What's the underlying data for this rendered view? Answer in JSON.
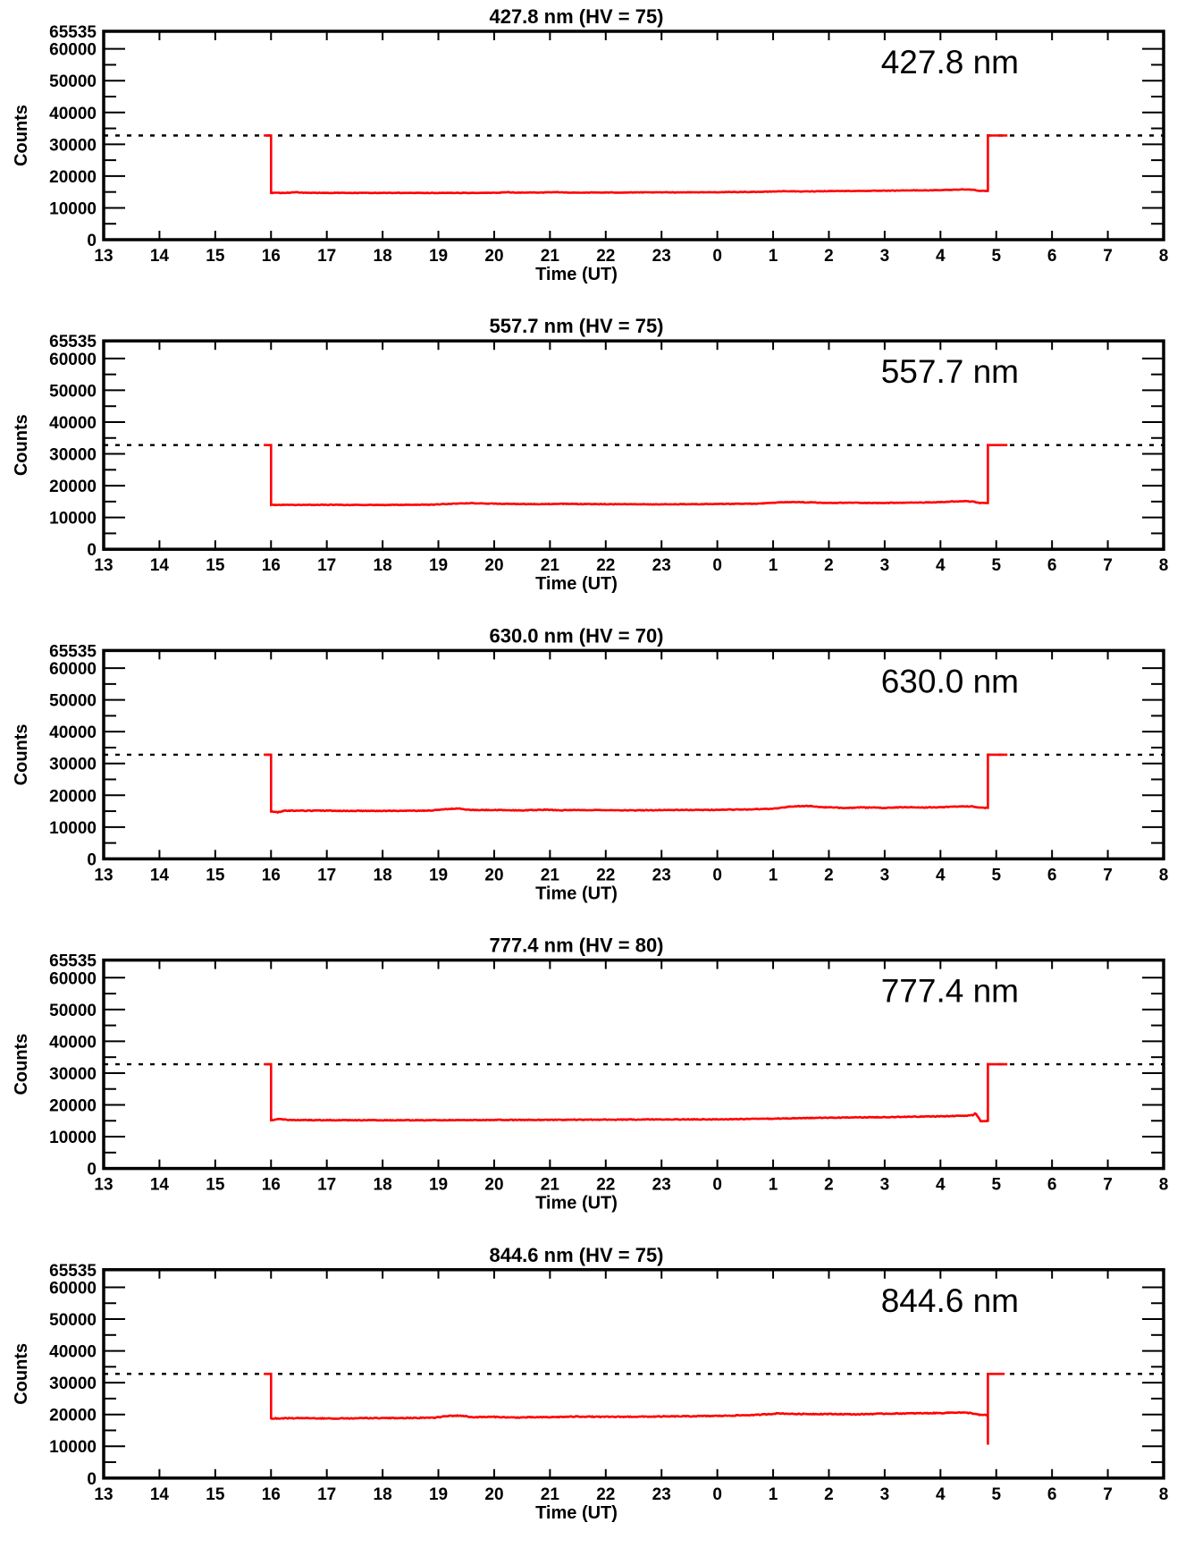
{
  "figure": {
    "background": "#ffffff",
    "axis_color": "#000000",
    "n_panels": 5
  },
  "chart_data": [
    {
      "type": "line",
      "title": "427.8 nm (HV = 75)",
      "panel_label": "427.8 nm",
      "xlabel": "Time (UT)",
      "ylabel": "Counts",
      "xlim": [
        13,
        32
      ],
      "ylim": [
        0,
        65535
      ],
      "x_tick_labels": [
        "13",
        "14",
        "15",
        "16",
        "17",
        "18",
        "19",
        "20",
        "21",
        "22",
        "23",
        "0",
        "1",
        "2",
        "3",
        "4",
        "5",
        "6",
        "7",
        "8"
      ],
      "y_ticks": [
        {
          "v": 0,
          "label": "0"
        },
        {
          "v": 10000,
          "label": "10000"
        },
        {
          "v": 20000,
          "label": "20000"
        },
        {
          "v": 30000,
          "label": "30000"
        },
        {
          "v": 40000,
          "label": "40000"
        },
        {
          "v": 50000,
          "label": "50000"
        },
        {
          "v": 60000,
          "label": "60000"
        },
        {
          "v": 65535,
          "label": "65535"
        }
      ],
      "y_minor_ticks": [
        5000,
        15000,
        25000,
        35000,
        45000,
        55000
      ],
      "reference_line": 32768,
      "line_color": "#ff0000",
      "series": {
        "name": "counts",
        "flat_top_level": 32768,
        "pre_top": [
          15.87,
          16.0
        ],
        "anchors": [
          [
            16,
            14700
          ],
          [
            16.35,
            14750
          ],
          [
            16.45,
            14950
          ],
          [
            16.55,
            14750
          ],
          [
            17.5,
            14700
          ],
          [
            18.5,
            14720
          ],
          [
            19.5,
            14700
          ],
          [
            20.1,
            14750
          ],
          [
            20.25,
            14950
          ],
          [
            20.4,
            14780
          ],
          [
            20.9,
            14850
          ],
          [
            21.1,
            14950
          ],
          [
            21.3,
            14800
          ],
          [
            22,
            14820
          ],
          [
            23,
            14880
          ],
          [
            24,
            14920
          ],
          [
            24.8,
            15050
          ],
          [
            25.2,
            15250
          ],
          [
            25.5,
            15150
          ],
          [
            26,
            15280
          ],
          [
            26.5,
            15320
          ],
          [
            27,
            15380
          ],
          [
            27.5,
            15520
          ],
          [
            27.8,
            15480
          ],
          [
            28.1,
            15650
          ],
          [
            28.45,
            15800
          ],
          [
            28.6,
            15750
          ],
          [
            28.68,
            15320
          ],
          [
            28.85,
            15320
          ]
        ],
        "end_jump_x": 28.85,
        "end_spike_low": null,
        "top_until": 29.2,
        "noise_amp": 70
      }
    },
    {
      "type": "line",
      "title": "557.7 nm (HV = 75)",
      "panel_label": "557.7 nm",
      "xlabel": "Time (UT)",
      "ylabel": "Counts",
      "xlim": [
        13,
        32
      ],
      "ylim": [
        0,
        65535
      ],
      "x_tick_labels": [
        "13",
        "14",
        "15",
        "16",
        "17",
        "18",
        "19",
        "20",
        "21",
        "22",
        "23",
        "0",
        "1",
        "2",
        "3",
        "4",
        "5",
        "6",
        "7",
        "8"
      ],
      "y_ticks": [
        {
          "v": 0,
          "label": "0"
        },
        {
          "v": 10000,
          "label": "10000"
        },
        {
          "v": 20000,
          "label": "20000"
        },
        {
          "v": 30000,
          "label": "30000"
        },
        {
          "v": 40000,
          "label": "40000"
        },
        {
          "v": 50000,
          "label": "50000"
        },
        {
          "v": 60000,
          "label": "60000"
        },
        {
          "v": 65535,
          "label": "65535"
        }
      ],
      "y_minor_ticks": [
        5000,
        15000,
        25000,
        35000,
        45000,
        55000
      ],
      "reference_line": 32768,
      "line_color": "#ff0000",
      "series": {
        "name": "counts",
        "flat_top_level": 32768,
        "pre_top": [
          15.87,
          16.0
        ],
        "anchors": [
          [
            16,
            13950
          ],
          [
            17,
            13980
          ],
          [
            18,
            13920
          ],
          [
            18.9,
            14050
          ],
          [
            19.3,
            14350
          ],
          [
            19.6,
            14500
          ],
          [
            19.9,
            14350
          ],
          [
            20.3,
            14250
          ],
          [
            20.8,
            14150
          ],
          [
            21.2,
            14300
          ],
          [
            21.6,
            14200
          ],
          [
            22.2,
            14150
          ],
          [
            23,
            14120
          ],
          [
            24,
            14220
          ],
          [
            24.7,
            14350
          ],
          [
            25.1,
            14700
          ],
          [
            25.4,
            14850
          ],
          [
            25.7,
            14700
          ],
          [
            26,
            14550
          ],
          [
            26.4,
            14650
          ],
          [
            26.9,
            14550
          ],
          [
            27.4,
            14650
          ],
          [
            27.9,
            14750
          ],
          [
            28.2,
            15000
          ],
          [
            28.45,
            15100
          ],
          [
            28.6,
            14950
          ],
          [
            28.7,
            14550
          ],
          [
            28.85,
            14550
          ]
        ],
        "end_jump_x": 28.85,
        "end_spike_low": null,
        "top_until": 29.2,
        "noise_amp": 90
      }
    },
    {
      "type": "line",
      "title": "630.0 nm (HV = 70)",
      "panel_label": "630.0 nm",
      "xlabel": "Time (UT)",
      "ylabel": "Counts",
      "xlim": [
        13,
        32
      ],
      "ylim": [
        0,
        65535
      ],
      "x_tick_labels": [
        "13",
        "14",
        "15",
        "16",
        "17",
        "18",
        "19",
        "20",
        "21",
        "22",
        "23",
        "0",
        "1",
        "2",
        "3",
        "4",
        "5",
        "6",
        "7",
        "8"
      ],
      "y_ticks": [
        {
          "v": 0,
          "label": "0"
        },
        {
          "v": 10000,
          "label": "10000"
        },
        {
          "v": 20000,
          "label": "20000"
        },
        {
          "v": 30000,
          "label": "30000"
        },
        {
          "v": 40000,
          "label": "40000"
        },
        {
          "v": 50000,
          "label": "50000"
        },
        {
          "v": 60000,
          "label": "60000"
        },
        {
          "v": 65535,
          "label": "65535"
        }
      ],
      "y_minor_ticks": [
        5000,
        15000,
        25000,
        35000,
        45000,
        55000
      ],
      "reference_line": 32768,
      "line_color": "#ff0000",
      "series": {
        "name": "counts",
        "flat_top_level": 32768,
        "pre_top": [
          15.87,
          16.0
        ],
        "anchors": [
          [
            16,
            14900
          ],
          [
            16.12,
            14650
          ],
          [
            16.25,
            15150
          ],
          [
            17,
            15150
          ],
          [
            18,
            15050
          ],
          [
            18.8,
            15150
          ],
          [
            19.15,
            15650
          ],
          [
            19.35,
            15800
          ],
          [
            19.6,
            15350
          ],
          [
            20,
            15350
          ],
          [
            20.5,
            15250
          ],
          [
            20.9,
            15450
          ],
          [
            21.2,
            15300
          ],
          [
            22,
            15350
          ],
          [
            22.5,
            15250
          ],
          [
            23,
            15350
          ],
          [
            23.8,
            15400
          ],
          [
            24.5,
            15550
          ],
          [
            25,
            15750
          ],
          [
            25.3,
            16450
          ],
          [
            25.6,
            16650
          ],
          [
            25.9,
            16250
          ],
          [
            26.2,
            16050
          ],
          [
            26.6,
            16150
          ],
          [
            27,
            16050
          ],
          [
            27.4,
            16250
          ],
          [
            27.8,
            16150
          ],
          [
            28.1,
            16300
          ],
          [
            28.4,
            16550
          ],
          [
            28.6,
            16450
          ],
          [
            28.7,
            16050
          ],
          [
            28.85,
            16050
          ]
        ],
        "end_jump_x": 28.85,
        "end_spike_low": null,
        "top_until": 29.2,
        "noise_amp": 110
      }
    },
    {
      "type": "line",
      "title": "777.4 nm (HV = 80)",
      "panel_label": "777.4 nm",
      "xlabel": "Time (UT)",
      "ylabel": "Counts",
      "xlim": [
        13,
        32
      ],
      "ylim": [
        0,
        65535
      ],
      "x_tick_labels": [
        "13",
        "14",
        "15",
        "16",
        "17",
        "18",
        "19",
        "20",
        "21",
        "22",
        "23",
        "0",
        "1",
        "2",
        "3",
        "4",
        "5",
        "6",
        "7",
        "8"
      ],
      "y_ticks": [
        {
          "v": 0,
          "label": "0"
        },
        {
          "v": 10000,
          "label": "10000"
        },
        {
          "v": 20000,
          "label": "20000"
        },
        {
          "v": 30000,
          "label": "30000"
        },
        {
          "v": 40000,
          "label": "40000"
        },
        {
          "v": 50000,
          "label": "50000"
        },
        {
          "v": 60000,
          "label": "60000"
        },
        {
          "v": 65535,
          "label": "65535"
        }
      ],
      "y_minor_ticks": [
        5000,
        15000,
        25000,
        35000,
        45000,
        55000
      ],
      "reference_line": 32768,
      "line_color": "#ff0000",
      "series": {
        "name": "counts",
        "flat_top_level": 32768,
        "pre_top": [
          15.87,
          16.0
        ],
        "anchors": [
          [
            16,
            15150
          ],
          [
            16.15,
            15550
          ],
          [
            16.3,
            15250
          ],
          [
            17,
            15200
          ],
          [
            18,
            15150
          ],
          [
            19,
            15200
          ],
          [
            20,
            15250
          ],
          [
            21,
            15300
          ],
          [
            22,
            15350
          ],
          [
            23,
            15400
          ],
          [
            24,
            15450
          ],
          [
            24.5,
            15550
          ],
          [
            25,
            15650
          ],
          [
            25.5,
            15850
          ],
          [
            26,
            15950
          ],
          [
            26.5,
            16050
          ],
          [
            27,
            16150
          ],
          [
            27.4,
            16250
          ],
          [
            27.8,
            16350
          ],
          [
            28.1,
            16450
          ],
          [
            28.35,
            16550
          ],
          [
            28.5,
            16650
          ],
          [
            28.58,
            16750
          ],
          [
            28.63,
            17350
          ],
          [
            28.68,
            16100
          ],
          [
            28.72,
            14950
          ],
          [
            28.85,
            14950
          ]
        ],
        "end_jump_x": 28.85,
        "end_spike_low": null,
        "top_until": 29.2,
        "noise_amp": 110
      }
    },
    {
      "type": "line",
      "title": "844.6 nm (HV = 75)",
      "panel_label": "844.6 nm",
      "xlabel": "Time (UT)",
      "ylabel": "Counts",
      "xlim": [
        13,
        32
      ],
      "ylim": [
        0,
        65535
      ],
      "x_tick_labels": [
        "13",
        "14",
        "15",
        "16",
        "17",
        "18",
        "19",
        "20",
        "21",
        "22",
        "23",
        "0",
        "1",
        "2",
        "3",
        "4",
        "5",
        "6",
        "7",
        "8"
      ],
      "y_ticks": [
        {
          "v": 0,
          "label": "0"
        },
        {
          "v": 10000,
          "label": "10000"
        },
        {
          "v": 20000,
          "label": "20000"
        },
        {
          "v": 30000,
          "label": "30000"
        },
        {
          "v": 40000,
          "label": "40000"
        },
        {
          "v": 50000,
          "label": "50000"
        },
        {
          "v": 60000,
          "label": "60000"
        },
        {
          "v": 65535,
          "label": "65535"
        }
      ],
      "y_minor_ticks": [
        5000,
        15000,
        25000,
        35000,
        45000,
        55000
      ],
      "reference_line": 32768,
      "line_color": "#ff0000",
      "series": {
        "name": "counts",
        "flat_top_level": 32768,
        "pre_top": [
          15.87,
          16.0
        ],
        "anchors": [
          [
            16,
            18750
          ],
          [
            16.5,
            18850
          ],
          [
            17,
            18750
          ],
          [
            18,
            18850
          ],
          [
            18.9,
            18950
          ],
          [
            19.2,
            19550
          ],
          [
            19.4,
            19650
          ],
          [
            19.6,
            19150
          ],
          [
            20,
            19250
          ],
          [
            20.3,
            19050
          ],
          [
            21,
            19150
          ],
          [
            21.5,
            19350
          ],
          [
            22,
            19250
          ],
          [
            23,
            19350
          ],
          [
            24,
            19550
          ],
          [
            24.7,
            19850
          ],
          [
            25.1,
            20350
          ],
          [
            25.4,
            20150
          ],
          [
            26,
            20150
          ],
          [
            26.5,
            20050
          ],
          [
            27,
            20250
          ],
          [
            27.5,
            20350
          ],
          [
            28,
            20450
          ],
          [
            28.3,
            20650
          ],
          [
            28.55,
            20450
          ],
          [
            28.7,
            19850
          ],
          [
            28.85,
            19850
          ]
        ],
        "end_jump_x": 28.85,
        "end_spike_low": 10500,
        "top_until": 29.15,
        "noise_amp": 130
      }
    }
  ]
}
